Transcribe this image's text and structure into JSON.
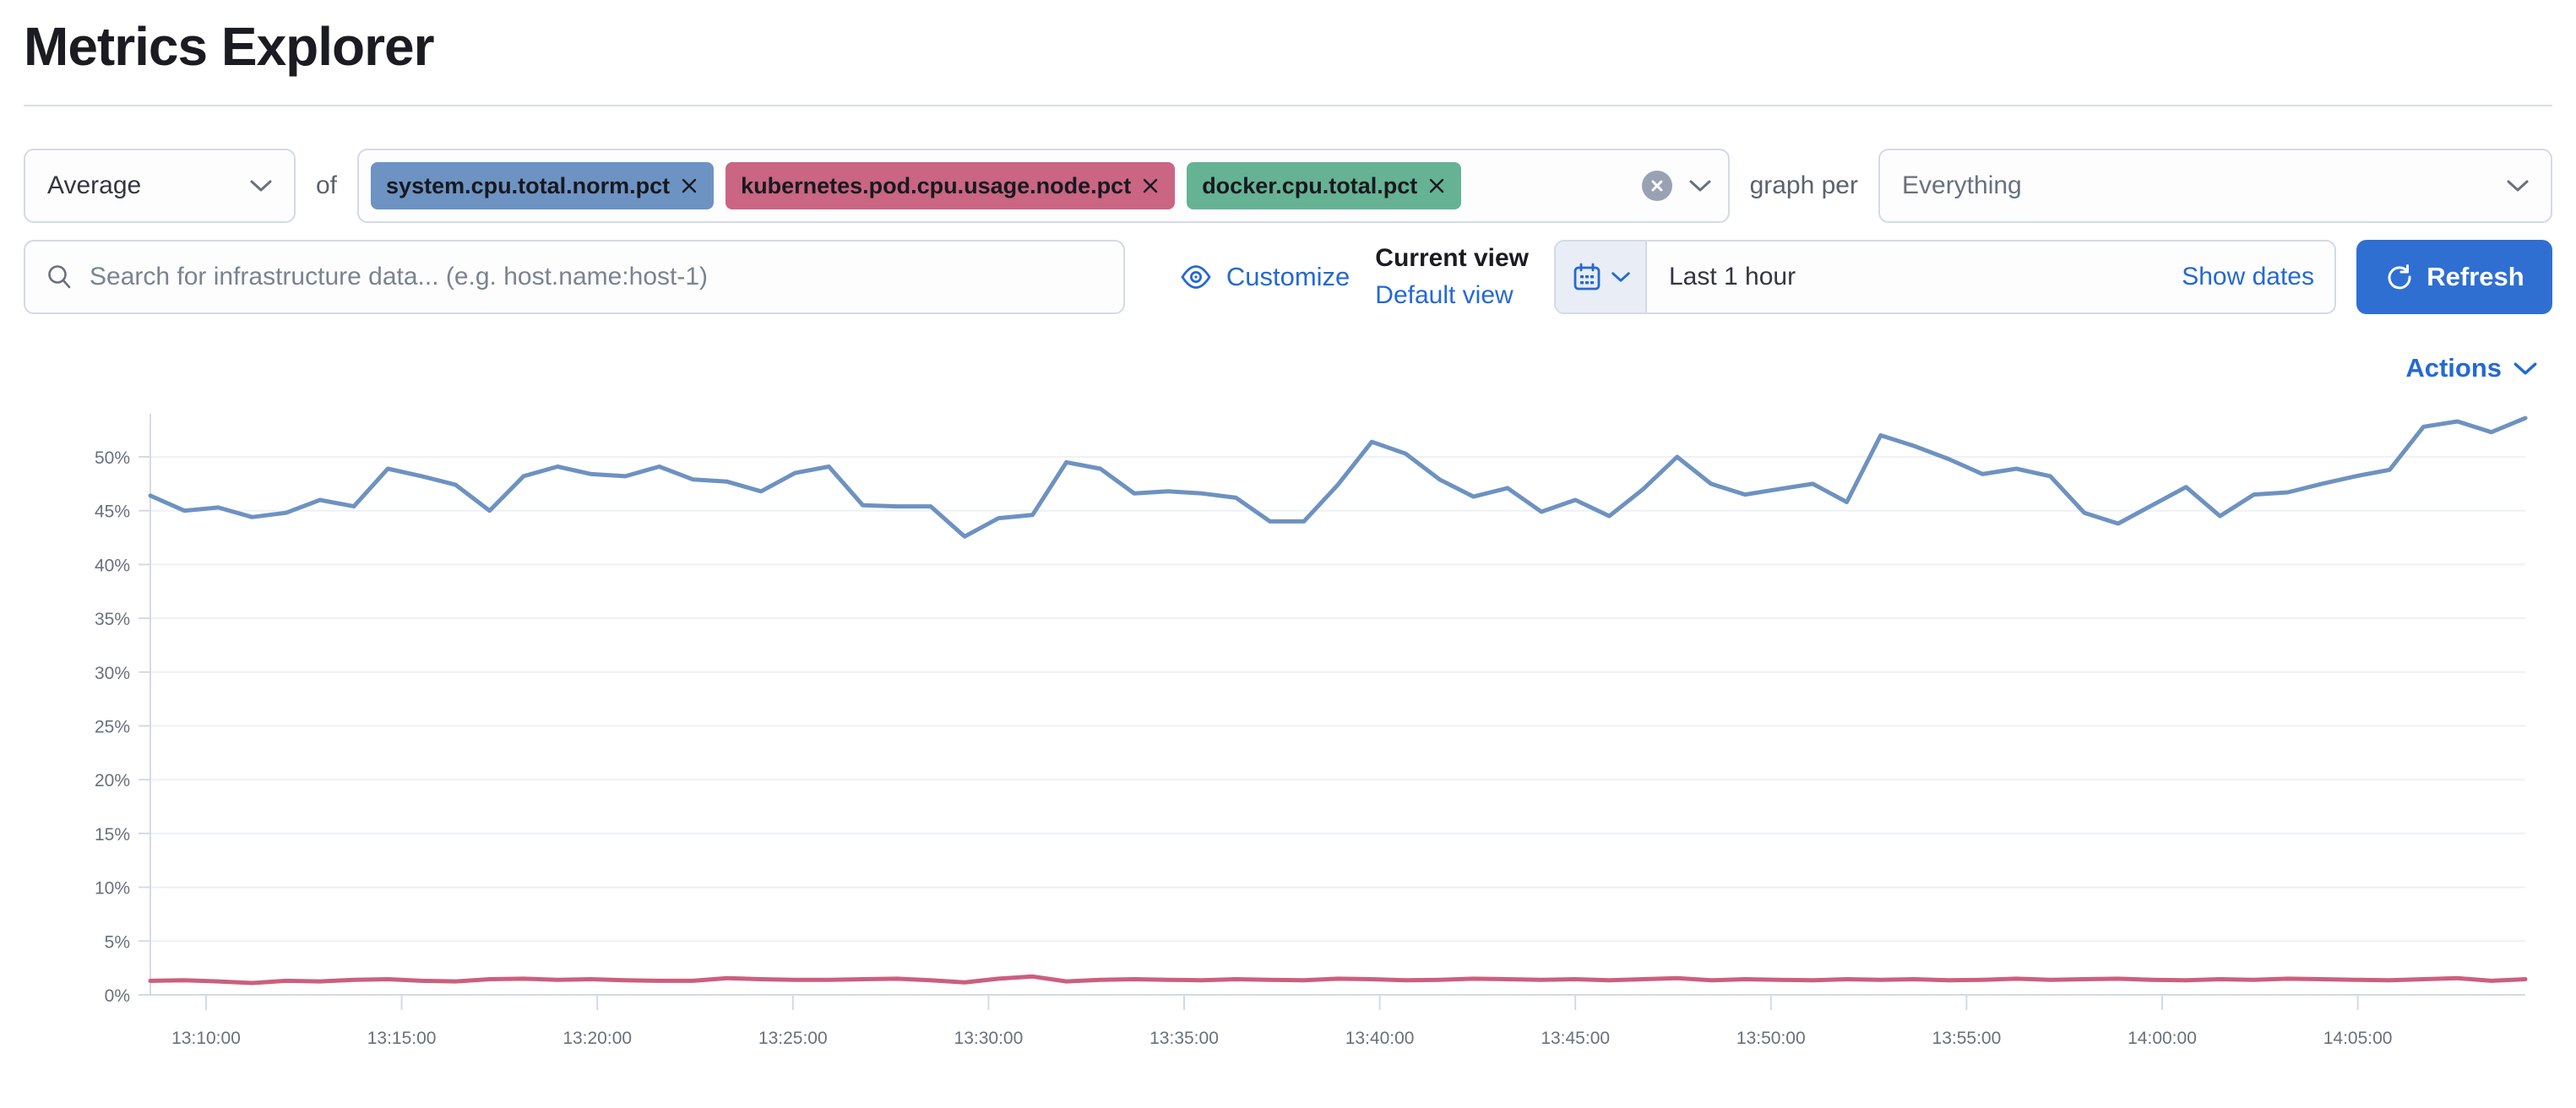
{
  "header": {
    "title": "Metrics Explorer"
  },
  "controls": {
    "aggregation": {
      "value": "Average"
    },
    "of_label": "of",
    "metrics": [
      {
        "label": "system.cpu.total.norm.pct",
        "color": "#6d93c3",
        "remove_icon": "✕"
      },
      {
        "label": "kubernetes.pod.cpu.usage.node.pct",
        "color": "#ca6584",
        "remove_icon": "✕"
      },
      {
        "label": "docker.cpu.total.pct",
        "color": "#66b295",
        "remove_icon": "✕"
      }
    ],
    "graph_per_label": "graph per",
    "group_by": {
      "value": "Everything"
    },
    "search": {
      "placeholder": "Search for infrastructure data... (e.g. host.name:host-1)"
    },
    "customize_label": "Customize",
    "view_picker": {
      "current_label": "Current view",
      "selected_view": "Default view"
    },
    "time_picker": {
      "value": "Last 1 hour",
      "show_dates_label": "Show dates"
    },
    "refresh_label": "Refresh",
    "accent_color": "#2569d3"
  },
  "chart": {
    "actions_label": "Actions"
  },
  "chart_data": {
    "type": "line",
    "title": "",
    "xlabel": "",
    "ylabel": "",
    "ylim": [
      0,
      54
    ],
    "grid": true,
    "legend": "none",
    "y_tick_labels": [
      "0%",
      "5%",
      "10%",
      "15%",
      "20%",
      "25%",
      "30%",
      "35%",
      "40%",
      "45%",
      "50%"
    ],
    "x_tick_labels": [
      "13:10:00",
      "13:15:00",
      "13:20:00",
      "13:25:00",
      "13:30:00",
      "13:35:00",
      "13:40:00",
      "13:45:00",
      "13:50:00",
      "13:55:00",
      "14:00:00",
      "14:05:00"
    ],
    "x_range": [
      "13:08:30",
      "14:08:00"
    ],
    "series": [
      {
        "name": "average of system.cpu.total.norm.pct",
        "color": "#6d92c1",
        "values": [
          46.4,
          45.0,
          45.3,
          44.4,
          44.8,
          46.0,
          45.4,
          48.9,
          48.2,
          47.4,
          45.0,
          48.2,
          49.1,
          48.4,
          48.2,
          49.1,
          47.9,
          47.7,
          46.8,
          48.5,
          49.1,
          45.5,
          45.4,
          45.4,
          42.6,
          44.3,
          44.6,
          49.5,
          48.9,
          46.6,
          46.8,
          46.6,
          46.2,
          44.0,
          44.0,
          47.4,
          51.4,
          50.3,
          47.9,
          46.3,
          47.1,
          44.9,
          46.0,
          44.5,
          47.0,
          50.0,
          47.5,
          46.5,
          47.0,
          47.5,
          45.8,
          52.0,
          51.0,
          49.8,
          48.4,
          48.9,
          48.2,
          44.8,
          43.8,
          45.5,
          47.2,
          44.5,
          46.5,
          46.7,
          47.5,
          48.2,
          48.8,
          52.8,
          53.3,
          52.3,
          53.6
        ]
      },
      {
        "name": "average of kubernetes.pod.cpu.usage.node.pct",
        "color": "#cb5f7e",
        "values": [
          1.3,
          1.35,
          1.25,
          1.1,
          1.3,
          1.25,
          1.4,
          1.45,
          1.3,
          1.25,
          1.45,
          1.5,
          1.4,
          1.45,
          1.35,
          1.3,
          1.3,
          1.55,
          1.45,
          1.4,
          1.4,
          1.45,
          1.5,
          1.35,
          1.15,
          1.5,
          1.7,
          1.25,
          1.4,
          1.45,
          1.4,
          1.35,
          1.45,
          1.4,
          1.35,
          1.5,
          1.45,
          1.35,
          1.4,
          1.5,
          1.45,
          1.4,
          1.45,
          1.35,
          1.45,
          1.55,
          1.35,
          1.45,
          1.4,
          1.35,
          1.45,
          1.4,
          1.45,
          1.35,
          1.4,
          1.5,
          1.4,
          1.45,
          1.5,
          1.4,
          1.35,
          1.45,
          1.4,
          1.5,
          1.45,
          1.4,
          1.35,
          1.45,
          1.55,
          1.3,
          1.45
        ]
      }
    ]
  }
}
